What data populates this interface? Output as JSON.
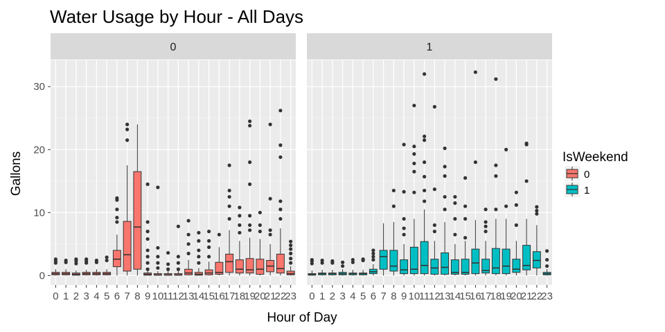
{
  "chart_data": {
    "type": "boxplot",
    "title": "Water Usage by Hour - All Days",
    "xlabel": "Hour of Day",
    "ylabel": "Gallons",
    "ylim": [
      -1.5,
      34.2
    ],
    "yticks": [
      0,
      10,
      20,
      30
    ],
    "categories": [
      "0",
      "1",
      "2",
      "3",
      "4",
      "5",
      "6",
      "7",
      "8",
      "9",
      "10",
      "11",
      "12",
      "13",
      "14",
      "15",
      "16",
      "17",
      "18",
      "19",
      "20",
      "21",
      "22",
      "23"
    ],
    "legend": {
      "title": "IsWeekend",
      "placement": "right",
      "entries": [
        {
          "label": "0",
          "color": "#F8766D"
        },
        {
          "label": "1",
          "color": "#00BFC4"
        }
      ]
    },
    "facets": [
      {
        "label": "0",
        "series": "0",
        "color": "#F8766D",
        "boxes": [
          {
            "lw": 0,
            "q1": 0.1,
            "med": 0.3,
            "q3": 0.5,
            "uw": 1.0,
            "out": [
              2.0,
              2.3,
              2.6
            ]
          },
          {
            "lw": 0,
            "q1": 0.1,
            "med": 0.3,
            "q3": 0.5,
            "uw": 1.0,
            "out": [
              2.1,
              2.4
            ]
          },
          {
            "lw": 0,
            "q1": 0.05,
            "med": 0.2,
            "q3": 0.4,
            "uw": 0.8,
            "out": [
              1.9,
              2.3,
              2.6
            ]
          },
          {
            "lw": 0,
            "q1": 0.1,
            "med": 0.3,
            "q3": 0.5,
            "uw": 0.9,
            "out": [
              2.0,
              2.3,
              2.6
            ]
          },
          {
            "lw": 0,
            "q1": 0.1,
            "med": 0.3,
            "q3": 0.5,
            "uw": 1.0,
            "out": [
              2.1,
              2.4
            ]
          },
          {
            "lw": 0,
            "q1": 0.1,
            "med": 0.3,
            "q3": 0.5,
            "uw": 1.0,
            "out": [
              2.4,
              2.9
            ]
          },
          {
            "lw": 0,
            "q1": 1.4,
            "med": 2.6,
            "q3": 4.0,
            "uw": 6.5,
            "out": [
              8.5,
              9.2,
              10.5,
              12.0,
              12.3
            ]
          },
          {
            "lw": 0,
            "q1": 0.7,
            "med": 3.3,
            "q3": 8.6,
            "uw": 17.5,
            "out": [
              21.5,
              23.2,
              24.0
            ]
          },
          {
            "lw": 0,
            "q1": 1.0,
            "med": 7.7,
            "q3": 16.5,
            "uw": 24.0,
            "out": []
          },
          {
            "lw": 0,
            "q1": 0.05,
            "med": 0.2,
            "q3": 0.4,
            "uw": 0.8,
            "out": [
              1.0,
              2.0,
              3.0,
              4.0,
              5.8,
              7.0,
              8.5,
              14.5
            ]
          },
          {
            "lw": 0,
            "q1": 0.05,
            "med": 0.1,
            "q3": 0.3,
            "uw": 0.7,
            "out": [
              1.2,
              2.0,
              3.0,
              4.4,
              14.0
            ]
          },
          {
            "lw": 0,
            "q1": 0.05,
            "med": 0.1,
            "q3": 0.3,
            "uw": 0.7,
            "out": [
              1.0,
              1.8,
              3.6
            ]
          },
          {
            "lw": 0,
            "q1": 0.05,
            "med": 0.1,
            "q3": 0.3,
            "uw": 0.7,
            "out": [
              1.0,
              2.0,
              3.0,
              7.8
            ]
          },
          {
            "lw": 0,
            "q1": 0.1,
            "med": 0.4,
            "q3": 1.0,
            "uw": 2.5,
            "out": [
              3.5,
              5.0,
              6.5,
              8.7
            ]
          },
          {
            "lw": 0,
            "q1": 0.05,
            "med": 0.2,
            "q3": 0.5,
            "uw": 1.2,
            "out": [
              2.0,
              3.0,
              4.0,
              5.5,
              6.8
            ]
          },
          {
            "lw": 0,
            "q1": 0.1,
            "med": 0.4,
            "q3": 0.9,
            "uw": 2.2,
            "out": [
              3.0,
              4.5,
              5.5,
              7.0
            ]
          },
          {
            "lw": 0,
            "q1": 0.2,
            "med": 0.5,
            "q3": 2.1,
            "uw": 4.5,
            "out": [
              6.5
            ]
          },
          {
            "lw": 0,
            "q1": 0.5,
            "med": 2.2,
            "q3": 3.4,
            "uw": 7.2,
            "out": [
              9.0,
              11.0,
              12.5,
              13.5,
              17.5
            ]
          },
          {
            "lw": 0,
            "q1": 0.4,
            "med": 1.0,
            "q3": 2.5,
            "uw": 5.5,
            "out": [
              6.8,
              8.0,
              9.5,
              10.8
            ]
          },
          {
            "lw": 0,
            "q1": 0.4,
            "med": 0.9,
            "q3": 2.7,
            "uw": 6.0,
            "out": [
              7.2,
              8.0,
              9.5,
              14.5,
              18.0,
              23.8,
              24.5
            ]
          },
          {
            "lw": 0,
            "q1": 0.2,
            "med": 1.0,
            "q3": 2.6,
            "uw": 5.8,
            "out": [
              7.0,
              8.0,
              10.0
            ]
          },
          {
            "lw": 0,
            "q1": 0.6,
            "med": 1.5,
            "q3": 2.4,
            "uw": 5.0,
            "out": [
              6.5,
              7.2,
              12.2,
              24.0
            ]
          },
          {
            "lw": 0,
            "q1": 0.4,
            "med": 1.1,
            "q3": 3.4,
            "uw": 7.5,
            "out": [
              9.0,
              10.5,
              11.8,
              18.8,
              20.7,
              26.2
            ]
          },
          {
            "lw": 0,
            "q1": 0.1,
            "med": 0.3,
            "q3": 0.7,
            "uw": 1.5,
            "out": [
              2.0,
              2.7,
              3.5,
              4.2,
              4.8,
              5.4
            ]
          }
        ]
      },
      {
        "label": "1",
        "series": "1",
        "color": "#00BFC4",
        "boxes": [
          {
            "lw": 0,
            "q1": 0.05,
            "med": 0.2,
            "q3": 0.3,
            "uw": 0.8,
            "out": [
              1.9,
              2.3,
              2.5
            ]
          },
          {
            "lw": 0,
            "q1": 0.1,
            "med": 0.3,
            "q3": 0.4,
            "uw": 0.9,
            "out": [
              2.0,
              2.4
            ]
          },
          {
            "lw": 0,
            "q1": 0.1,
            "med": 0.3,
            "q3": 0.4,
            "uw": 0.9,
            "out": [
              2.0,
              2.3
            ]
          },
          {
            "lw": 0,
            "q1": 0.1,
            "med": 0.3,
            "q3": 0.5,
            "uw": 1.0,
            "out": [
              1.5,
              2.1
            ]
          },
          {
            "lw": 0,
            "q1": 0.1,
            "med": 0.3,
            "q3": 0.4,
            "uw": 0.9,
            "out": [
              2.1,
              2.5
            ]
          },
          {
            "lw": 0,
            "q1": 0.1,
            "med": 0.3,
            "q3": 0.4,
            "uw": 0.9,
            "out": [
              2.4,
              2.6
            ]
          },
          {
            "lw": 0,
            "q1": 0.3,
            "med": 0.6,
            "q3": 1.0,
            "uw": 1.8,
            "out": [
              2.5,
              3.0,
              3.5,
              4.0
            ]
          },
          {
            "lw": 0,
            "q1": 1.0,
            "med": 3.0,
            "q3": 4.0,
            "uw": 8.3,
            "out": []
          },
          {
            "lw": 0,
            "q1": 0.7,
            "med": 1.5,
            "q3": 4.0,
            "uw": 8.5,
            "out": [
              11.0,
              13.5
            ]
          },
          {
            "lw": 0,
            "q1": 0.3,
            "med": 0.9,
            "q3": 2.5,
            "uw": 5.0,
            "out": [
              6.5,
              7.5,
              9.0,
              13.3,
              20.8
            ]
          },
          {
            "lw": 0,
            "q1": 0.3,
            "med": 1.0,
            "q3": 4.5,
            "uw": 9.0,
            "out": [
              13.2,
              16.5,
              17.8,
              19.3,
              20.5,
              27.0
            ]
          },
          {
            "lw": 0,
            "q1": 0.3,
            "med": 1.6,
            "q3": 5.4,
            "uw": 10.5,
            "out": [
              11.8,
              13.5,
              15.7,
              18.0,
              21.5,
              22.1,
              32.0
            ]
          },
          {
            "lw": 0,
            "q1": 0.2,
            "med": 1.2,
            "q3": 2.6,
            "uw": 5.5,
            "out": [
              7.0,
              8.0,
              13.7,
              26.8
            ]
          },
          {
            "lw": 0,
            "q1": 0.2,
            "med": 1.3,
            "q3": 3.6,
            "uw": 8.5,
            "out": [
              10.5,
              12.5,
              15.8,
              17.3,
              20.2
            ]
          },
          {
            "lw": 0,
            "q1": 0.2,
            "med": 0.5,
            "q3": 2.5,
            "uw": 5.0,
            "out": [
              6.5,
              9.0,
              11.5,
              12.5
            ]
          },
          {
            "lw": 0,
            "q1": 0.2,
            "med": 0.5,
            "q3": 2.6,
            "uw": 5.5,
            "out": [
              6.0,
              9.0,
              11.0,
              15.5
            ]
          },
          {
            "lw": 0,
            "q1": 0.3,
            "med": 2.0,
            "q3": 4.2,
            "uw": 8.8,
            "out": [
              18.0,
              32.3
            ]
          },
          {
            "lw": 0,
            "q1": 0.4,
            "med": 0.8,
            "q3": 2.6,
            "uw": 5.5,
            "out": [
              7.0,
              7.8,
              8.5,
              10.5
            ]
          },
          {
            "lw": 0,
            "q1": 0.3,
            "med": 1.2,
            "q3": 4.3,
            "uw": 9.0,
            "out": [
              10.5,
              15.8,
              17.5,
              31.2
            ]
          },
          {
            "lw": 0,
            "q1": 0.3,
            "med": 1.5,
            "q3": 4.2,
            "uw": 9.0,
            "out": [
              11.0,
              20.0
            ]
          },
          {
            "lw": 0,
            "q1": 0.5,
            "med": 1.0,
            "q3": 2.6,
            "uw": 5.5,
            "out": [
              8.0,
              11.2,
              13.2
            ]
          },
          {
            "lw": 0,
            "q1": 0.9,
            "med": 1.6,
            "q3": 4.8,
            "uw": 9.0,
            "out": [
              15.0,
              20.8,
              21.0
            ]
          },
          {
            "lw": 0,
            "q1": 1.2,
            "med": 2.4,
            "q3": 3.8,
            "uw": 8.0,
            "out": [
              9.8,
              10.3,
              10.9
            ]
          },
          {
            "lw": 0,
            "q1": 0.1,
            "med": 0.3,
            "q3": 0.5,
            "uw": 1.0,
            "out": [
              1.5,
              2.5,
              3.9
            ]
          }
        ]
      }
    ]
  }
}
